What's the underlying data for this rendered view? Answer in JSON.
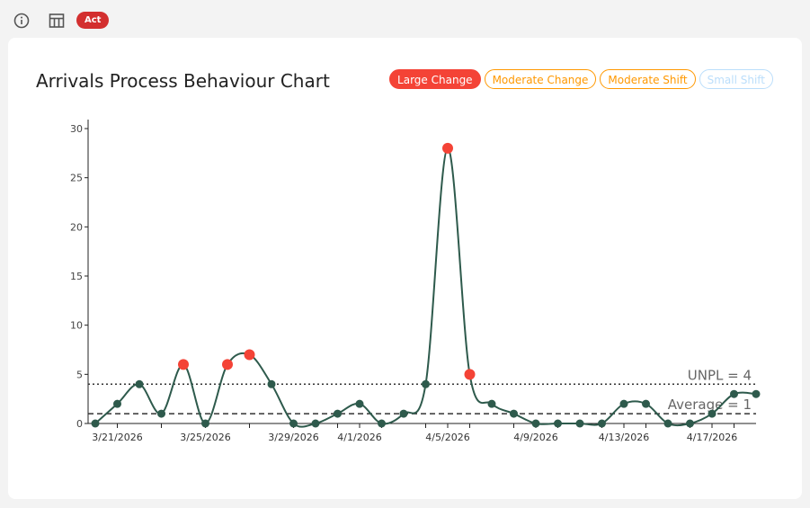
{
  "toolbar": {
    "info_icon": "info-icon",
    "table_icon": "table-icon",
    "act_label": "Act"
  },
  "colors": {
    "line": "#2e5a4c",
    "signal": "#f44336",
    "large": "#f44336",
    "moderate": "#ff9800",
    "small": "#90caf9"
  },
  "chart_data": {
    "type": "line",
    "title": "Arrivals Process Behaviour Chart",
    "legend": [
      {
        "label": "Large Change",
        "active": true
      },
      {
        "label": "Moderate Change",
        "active": false
      },
      {
        "label": "Moderate Shift",
        "active": false
      },
      {
        "label": "Small Shift",
        "active": false
      }
    ],
    "x": [
      "3/20/2026",
      "3/21/2026",
      "3/22/2026",
      "3/23/2026",
      "3/24/2026",
      "3/25/2026",
      "3/26/2026",
      "3/27/2026",
      "3/28/2026",
      "3/29/2026",
      "3/30/2026",
      "3/31/2026",
      "4/1/2026",
      "4/2/2026",
      "4/3/2026",
      "4/4/2026",
      "4/5/2026",
      "4/6/2026",
      "4/7/2026",
      "4/8/2026",
      "4/9/2026",
      "4/10/2026",
      "4/11/2026",
      "4/12/2026",
      "4/13/2026",
      "4/14/2026",
      "4/15/2026",
      "4/16/2026",
      "4/17/2026",
      "4/18/2026",
      "4/19/2026"
    ],
    "values": [
      0,
      2,
      4,
      1,
      6,
      0,
      6,
      7,
      4,
      0,
      0,
      1,
      2,
      0,
      1,
      4,
      28,
      5,
      2,
      1,
      0,
      0,
      0,
      0,
      2,
      2,
      0,
      0,
      1,
      3,
      3
    ],
    "signals": [
      4,
      6,
      7,
      16,
      17
    ],
    "x_tick_labels": [
      "3/21/2026",
      "3/25/2026",
      "3/29/2026",
      "4/1/2026",
      "4/5/2026",
      "4/9/2026",
      "4/13/2026",
      "4/17/2026"
    ],
    "y_ticks": [
      0,
      5,
      10,
      15,
      20,
      25,
      30
    ],
    "ylim": [
      0,
      30
    ],
    "unpl": {
      "label": "UNPL = 4",
      "value": 4
    },
    "average": {
      "label": "Average = 1",
      "value": 1
    }
  }
}
